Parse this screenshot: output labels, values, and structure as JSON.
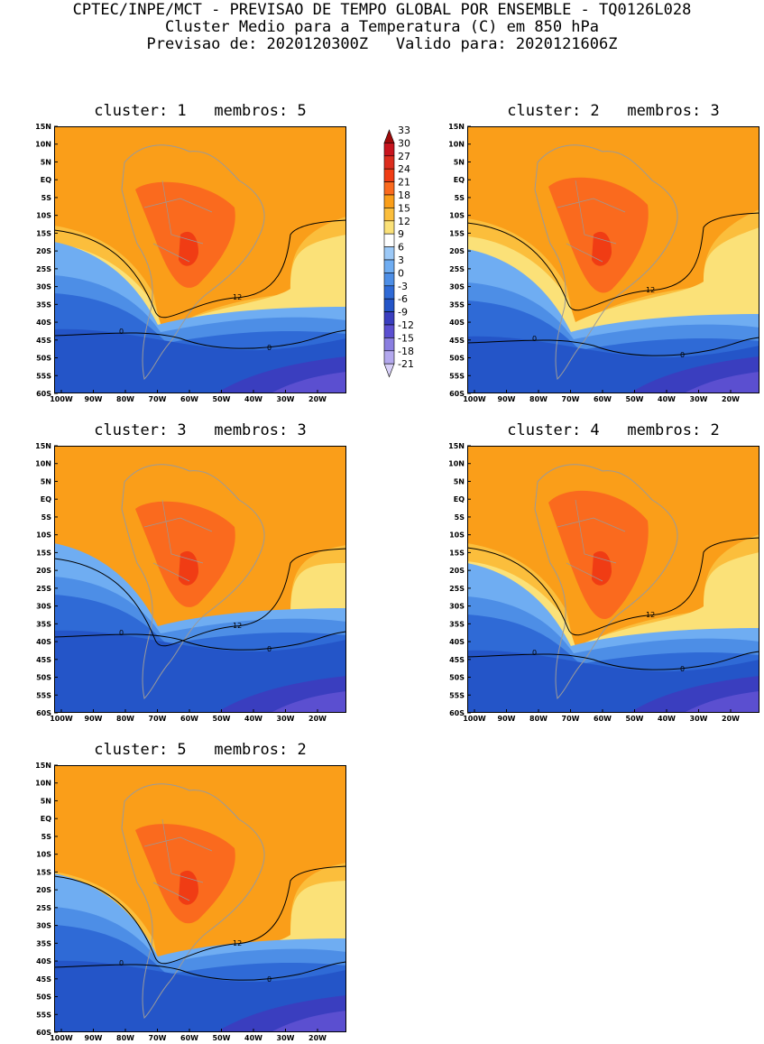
{
  "header": {
    "line1": "CPTEC/INPE/MCT - PREVISAO DE TEMPO GLOBAL POR ENSEMBLE - TQ0126L028",
    "line2": "Cluster Medio para a Temperatura (C) em 850 hPa",
    "line3": "Previsao de: 2020120300Z   Valido para: 2020121606Z"
  },
  "axes": {
    "lat_labels": [
      "15N",
      "10N",
      "5N",
      "EQ",
      "5S",
      "10S",
      "15S",
      "20S",
      "25S",
      "30S",
      "35S",
      "40S",
      "45S",
      "50S",
      "55S",
      "60S"
    ],
    "lon_labels": [
      "100W",
      "90W",
      "80W",
      "70W",
      "60W",
      "50W",
      "40W",
      "30W",
      "20W"
    ]
  },
  "colors": {
    "c24": "#f03c14",
    "c21": "#fa6a1e",
    "c18": "#fa9e19",
    "c15": "#fbbe3c",
    "c12": "#fbe178",
    "c9": "#ffffff",
    "c6": "#6fadf2",
    "c3": "#4d8ee6",
    "c0": "#2f6ad6",
    "cm3": "#2455c8",
    "cm6": "#3a3ebf",
    "cm9": "#5b4fd0",
    "land_line": "#9a9a9a"
  },
  "legend": {
    "levels": [
      "33",
      "30",
      "27",
      "24",
      "21",
      "18",
      "15",
      "12",
      "9",
      "6",
      "3",
      "0",
      "-3",
      "-6",
      "-9",
      "-12",
      "-15",
      "-18",
      "-21"
    ],
    "colors": [
      "#9e0a0a",
      "#c8141e",
      "#dc2d1e",
      "#f03c14",
      "#fa6a1e",
      "#fa9e19",
      "#fbbe3c",
      "#fbe178",
      "#ffffff",
      "#9cc9f7",
      "#6fadf2",
      "#4d8ee6",
      "#2f6ad6",
      "#2455c8",
      "#3a3ebf",
      "#5b4fd0",
      "#8a7ee0",
      "#b3a8ee",
      "#d8d0f8"
    ]
  },
  "panels": [
    {
      "title": "cluster: 1   membros: 5",
      "label12": "12",
      "label0a": "0",
      "label0b": "0"
    },
    {
      "title": "cluster: 2   membros: 3",
      "label12": "12",
      "label0a": "0",
      "label0b": "0"
    },
    {
      "title": "cluster: 3   membros: 3",
      "label12": "12",
      "label0a": "0",
      "label0b": "0"
    },
    {
      "title": "cluster: 4   membros: 2",
      "label12": "12",
      "label0a": "0",
      "label0b": "0"
    },
    {
      "title": "cluster: 5   membros: 2",
      "label12": "12",
      "label0a": "0",
      "label0b": "0"
    }
  ]
}
